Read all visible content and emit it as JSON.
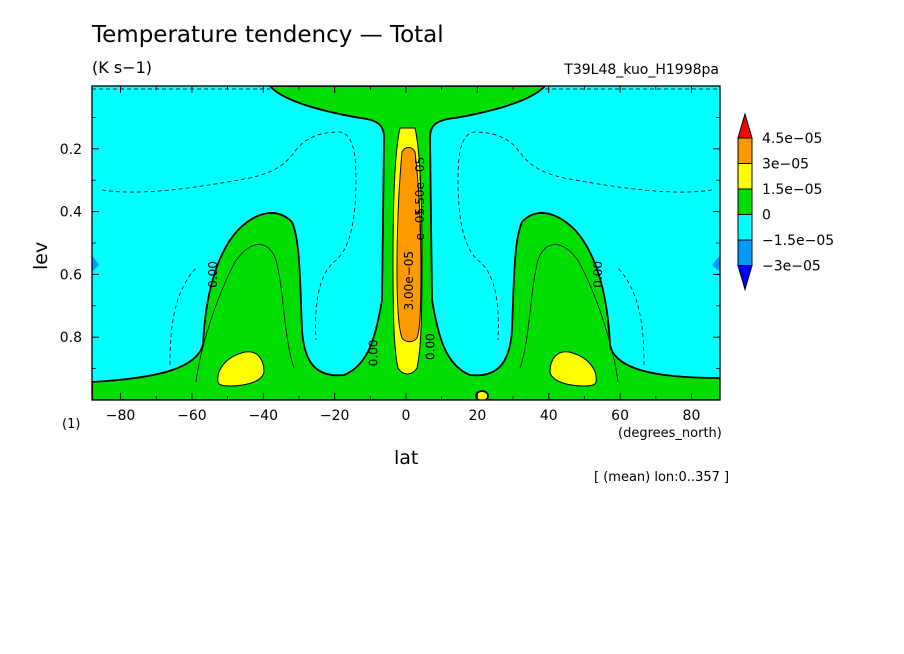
{
  "chart_data": {
    "type": "contour",
    "title": "Temperature tendency — Total",
    "units_label": "(K s−1)",
    "run_id": "T39L48_kuo_H1998pa",
    "xlabel": "lat",
    "xunits": "(degrees_north)",
    "ylabel": "lev",
    "ylevel_note": "(1)",
    "footnote": "[ (mean) lon:0..357 ]",
    "xlim": [
      -88,
      88
    ],
    "ylim": [
      1.0,
      0.0
    ],
    "xticks": [
      -80,
      -60,
      -40,
      -20,
      0,
      20,
      40,
      60,
      80
    ],
    "xtick_labels": [
      "−80",
      "−60",
      "−40",
      "−20",
      "0",
      "20",
      "40",
      "60",
      "80"
    ],
    "yticks": [
      0.2,
      0.4,
      0.6,
      0.8
    ],
    "ytick_labels": [
      "0.2",
      "0.4",
      "0.6",
      "0.8"
    ],
    "levels": [
      -3e-05,
      -1.5e-05,
      0,
      1.5e-05,
      3e-05,
      4.5e-05
    ],
    "colorbar": {
      "labels": [
        "4.5e−05",
        "3e−05",
        "1.5e−05",
        "0",
        "−1.5e−05",
        "−3e−05"
      ],
      "colors": [
        "#ff0000",
        "#ff9900",
        "#ffff00",
        "#00dd00",
        "#00ffff",
        "#0099ff",
        "#0000ff"
      ]
    },
    "contour_labels": [
      {
        "text": "0.00",
        "lat": -53,
        "lev": 0.6
      },
      {
        "text": "0.00",
        "lat": 55,
        "lev": 0.6
      },
      {
        "text": "0.00",
        "lat": -8,
        "lev": 0.85
      },
      {
        "text": "0.00",
        "lat": 8,
        "lev": 0.83
      },
      {
        "text": "3.00e−05",
        "lat": 2,
        "lev": 0.62
      },
      {
        "text": "1.50e−05",
        "lat": 5,
        "lev": 0.32
      },
      {
        "text": "e−05",
        "lat": 5,
        "lev": 0.44
      }
    ],
    "colors": {
      "neg1": "#00ffff",
      "pos1": "#00dd00",
      "pos2": "#ffff00",
      "pos3": "#ff9900",
      "neg2": "#0099ff"
    }
  }
}
